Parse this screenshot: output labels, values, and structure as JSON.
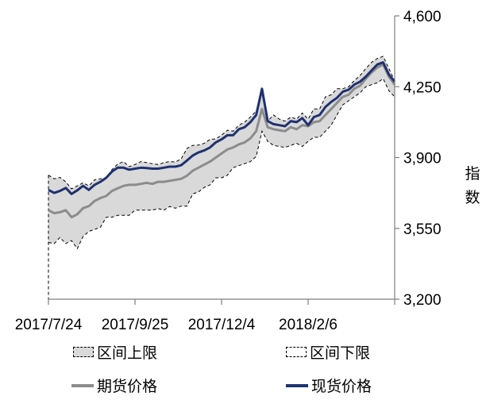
{
  "chart_data": {
    "type": "line",
    "x_tick_labels": [
      "2017/7/24",
      "2017/9/25",
      "2017/12/4",
      "2018/2/6"
    ],
    "ylabel": "指数",
    "ylim": [
      3200,
      4600
    ],
    "y_ticks": [
      "3,200",
      "3,550",
      "3,900",
      "4,250",
      "4,600"
    ],
    "y_axis_side": "right",
    "legend_placement": "bottom",
    "x_index_range": [
      0,
      60
    ],
    "series": [
      {
        "name": "区间上限",
        "kind": "band_upper",
        "color": "#d9d9d9",
        "values": [
          3813,
          3795,
          3802,
          3780,
          3745,
          3760,
          3775,
          3760,
          3790,
          3795,
          3800,
          3840,
          3868,
          3880,
          3855,
          3865,
          3880,
          3875,
          3870,
          3865,
          3875,
          3880,
          3878,
          3893,
          3945,
          3960,
          3962,
          3970,
          3990,
          3992,
          4010,
          4035,
          4030,
          4060,
          4075,
          4100,
          4130,
          4220,
          4080,
          4110,
          4090,
          4080,
          4100,
          4090,
          4120,
          4090,
          4140,
          4140,
          4200,
          4210,
          4240,
          4240,
          4250,
          4280,
          4305,
          4340,
          4370,
          4390,
          4400,
          4340,
          4280
        ]
      },
      {
        "name": "区间下限",
        "kind": "band_lower",
        "color": "#ffffff",
        "values": [
          3480,
          3475,
          3505,
          3475,
          3490,
          3450,
          3510,
          3535,
          3545,
          3555,
          3605,
          3605,
          3615,
          3615,
          3615,
          3640,
          3640,
          3640,
          3640,
          3648,
          3640,
          3658,
          3650,
          3660,
          3660,
          3720,
          3730,
          3752,
          3765,
          3800,
          3800,
          3812,
          3850,
          3860,
          3870,
          3880,
          3905,
          4030,
          3980,
          3960,
          3955,
          3950,
          3960,
          3970,
          3955,
          3980,
          4000,
          4000,
          4030,
          4060,
          4110,
          4160,
          4180,
          4200,
          4220,
          4250,
          4260,
          4270,
          4290,
          4230,
          4200
        ]
      },
      {
        "name": "期货价格",
        "kind": "line",
        "color": "#8c8c8c",
        "values": [
          3640,
          3625,
          3630,
          3640,
          3605,
          3620,
          3650,
          3660,
          3685,
          3700,
          3710,
          3735,
          3748,
          3760,
          3765,
          3765,
          3770,
          3775,
          3770,
          3780,
          3780,
          3785,
          3790,
          3795,
          3810,
          3835,
          3850,
          3865,
          3880,
          3900,
          3920,
          3940,
          3950,
          3965,
          3975,
          3995,
          4030,
          4140,
          4050,
          4040,
          4035,
          4030,
          4050,
          4040,
          4060,
          4055,
          4075,
          4080,
          4110,
          4140,
          4170,
          4200,
          4210,
          4240,
          4255,
          4290,
          4320,
          4345,
          4360,
          4300,
          4260
        ]
      },
      {
        "name": "现货价格",
        "kind": "line",
        "color": "#1f3170",
        "values": [
          3740,
          3725,
          3735,
          3750,
          3720,
          3738,
          3760,
          3740,
          3765,
          3780,
          3800,
          3830,
          3850,
          3850,
          3840,
          3845,
          3850,
          3848,
          3845,
          3845,
          3850,
          3855,
          3855,
          3862,
          3885,
          3910,
          3925,
          3935,
          3950,
          3975,
          3990,
          4010,
          4010,
          4040,
          4050,
          4075,
          4110,
          4240,
          4080,
          4065,
          4060,
          4055,
          4080,
          4075,
          4095,
          4060,
          4100,
          4110,
          4150,
          4175,
          4195,
          4225,
          4235,
          4260,
          4275,
          4300,
          4330,
          4360,
          4370,
          4310,
          4275
        ]
      }
    ]
  }
}
